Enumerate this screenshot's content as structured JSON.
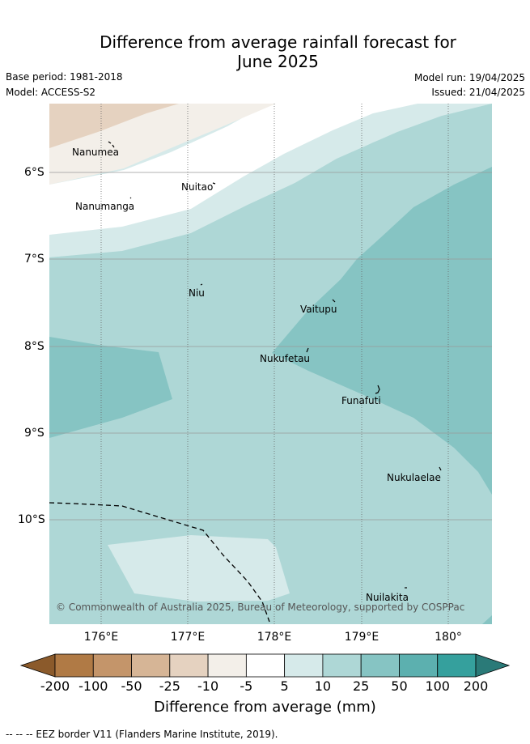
{
  "header": {
    "title_line1": "Difference from average rainfall forecast for",
    "title_line2": "June 2025",
    "base_period": "Base period: 1981-2018",
    "model": "Model: ACCESS-S2",
    "model_run": "Model run: 19/04/2025",
    "issued": "Issued: 21/04/2025"
  },
  "axes": {
    "lat_labels": [
      "6°S",
      "7°S",
      "8°S",
      "9°S",
      "10°S"
    ],
    "lon_labels": [
      "176°E",
      "177°E",
      "178°E",
      "179°E",
      "180°"
    ]
  },
  "islands": [
    {
      "name": "Nanumea"
    },
    {
      "name": "Nuitao"
    },
    {
      "name": "Nanumanga"
    },
    {
      "name": "Niu"
    },
    {
      "name": "Vaitupu"
    },
    {
      "name": "Nukufetau"
    },
    {
      "name": "Funafuti"
    },
    {
      "name": "Nukulaelae"
    },
    {
      "name": "Nuilakita"
    }
  ],
  "copyright": "© Commonwealth of Australia 2025, Bureau of Meteorology, supported by COSPPac",
  "colorbar": {
    "ticks": [
      "-200",
      "-100",
      "-50",
      "-25",
      "-10",
      "-5",
      "5",
      "10",
      "25",
      "50",
      "100",
      "200"
    ],
    "colors": [
      "#8b5a2b",
      "#b07a45",
      "#c4956a",
      "#d6b596",
      "#e5d2c0",
      "#f3efe9",
      "#ffffff",
      "#d6eaea",
      "#aed7d6",
      "#86c4c3",
      "#5cb0af",
      "#35a09d",
      "#2a7a78"
    ],
    "label": "Difference from average (mm)"
  },
  "legend": {
    "eez": "-- -- -- EEZ border V11 (Flanders Marine Institute, 2019)."
  },
  "map_colors": {
    "tan_dark": "#e5d2c0",
    "tan_light": "#f3efe9",
    "white": "#ffffff",
    "teal_lightest": "#d6eaea",
    "teal_light": "#aed7d6",
    "teal_mid": "#86c4c3"
  }
}
